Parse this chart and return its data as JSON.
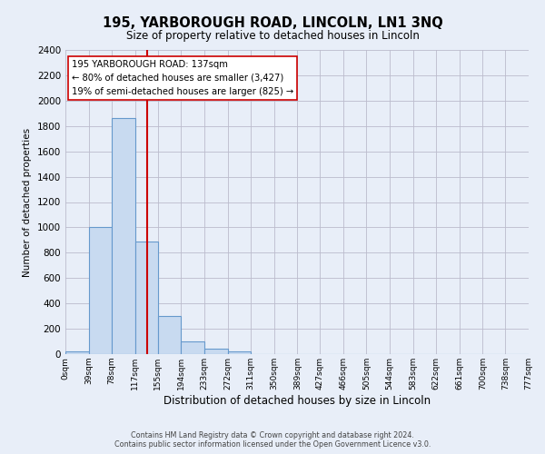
{
  "title": "195, YARBOROUGH ROAD, LINCOLN, LN1 3NQ",
  "subtitle": "Size of property relative to detached houses in Lincoln",
  "xlabel": "Distribution of detached houses by size in Lincoln",
  "ylabel": "Number of detached properties",
  "bin_edges": [
    0,
    39,
    78,
    117,
    155,
    194,
    233,
    272,
    311,
    350,
    389,
    427,
    466,
    505,
    544,
    583,
    622,
    661,
    700,
    738,
    777
  ],
  "bin_labels": [
    "0sqm",
    "39sqm",
    "78sqm",
    "117sqm",
    "155sqm",
    "194sqm",
    "233sqm",
    "272sqm",
    "311sqm",
    "350sqm",
    "389sqm",
    "427sqm",
    "466sqm",
    "505sqm",
    "544sqm",
    "583sqm",
    "622sqm",
    "661sqm",
    "700sqm",
    "738sqm",
    "777sqm"
  ],
  "counts": [
    20,
    1000,
    1860,
    890,
    300,
    100,
    45,
    20,
    0,
    0,
    0,
    0,
    0,
    0,
    0,
    0,
    0,
    0,
    0,
    0
  ],
  "bar_color": "#c8daf0",
  "bar_edgecolor": "#6699cc",
  "property_line_x": 137,
  "property_line_color": "#cc0000",
  "annotation_title": "195 YARBOROUGH ROAD: 137sqm",
  "annotation_line1": "← 80% of detached houses are smaller (3,427)",
  "annotation_line2": "19% of semi-detached houses are larger (825) →",
  "annotation_box_facecolor": "#ffffff",
  "annotation_box_edgecolor": "#cc0000",
  "ylim": [
    0,
    2400
  ],
  "yticks": [
    0,
    200,
    400,
    600,
    800,
    1000,
    1200,
    1400,
    1600,
    1800,
    2000,
    2200,
    2400
  ],
  "footer1": "Contains HM Land Registry data © Crown copyright and database right 2024.",
  "footer2": "Contains public sector information licensed under the Open Government Licence v3.0.",
  "background_color": "#e8eef8",
  "plot_background": "#e8eef8",
  "grid_color": "#bbbbcc"
}
